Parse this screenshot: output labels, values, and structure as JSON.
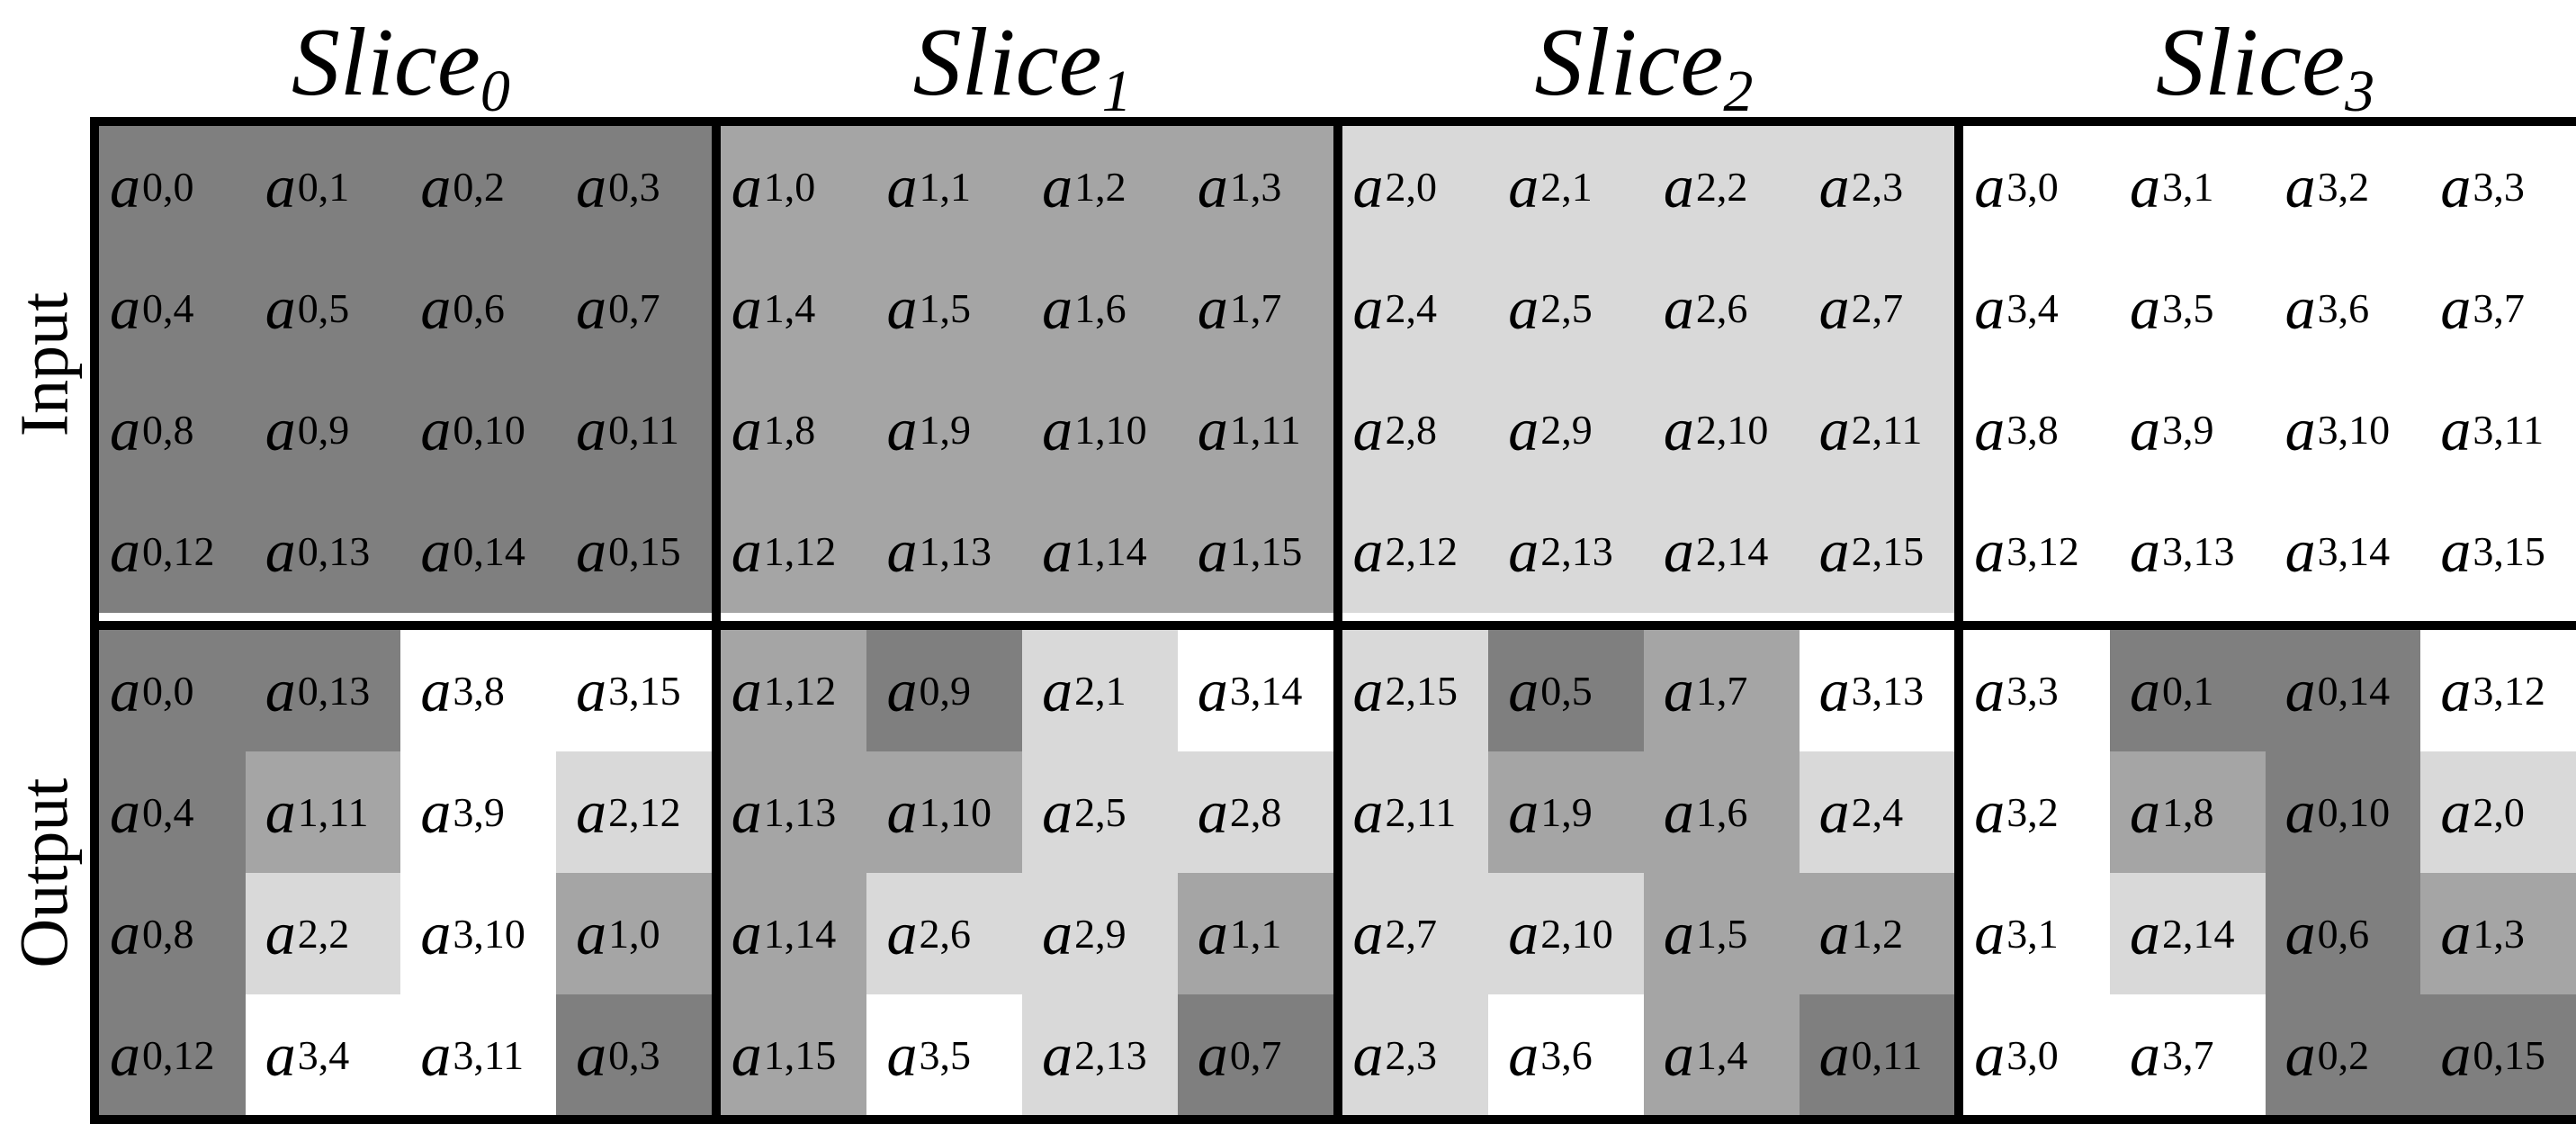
{
  "colors": {
    "0": "#7f7f7f",
    "1": "#a5a5a5",
    "2": "#d9d9d9",
    "3": "#ffffff"
  },
  "slices": [
    {
      "base": "Slice",
      "sub": "0"
    },
    {
      "base": "Slice",
      "sub": "1"
    },
    {
      "base": "Slice",
      "sub": "2"
    },
    {
      "base": "Slice",
      "sub": "3"
    }
  ],
  "row_labels": {
    "input": "Input",
    "output": "Output"
  },
  "symbol": "a",
  "input": [
    [
      [
        0,
        0
      ],
      [
        0,
        1
      ],
      [
        0,
        2
      ],
      [
        0,
        3
      ],
      [
        1,
        0
      ],
      [
        1,
        1
      ],
      [
        1,
        2
      ],
      [
        1,
        3
      ],
      [
        2,
        0
      ],
      [
        2,
        1
      ],
      [
        2,
        2
      ],
      [
        2,
        3
      ],
      [
        3,
        0
      ],
      [
        3,
        1
      ],
      [
        3,
        2
      ],
      [
        3,
        3
      ]
    ],
    [
      [
        0,
        4
      ],
      [
        0,
        5
      ],
      [
        0,
        6
      ],
      [
        0,
        7
      ],
      [
        1,
        4
      ],
      [
        1,
        5
      ],
      [
        1,
        6
      ],
      [
        1,
        7
      ],
      [
        2,
        4
      ],
      [
        2,
        5
      ],
      [
        2,
        6
      ],
      [
        2,
        7
      ],
      [
        3,
        4
      ],
      [
        3,
        5
      ],
      [
        3,
        6
      ],
      [
        3,
        7
      ]
    ],
    [
      [
        0,
        8
      ],
      [
        0,
        9
      ],
      [
        0,
        10
      ],
      [
        0,
        11
      ],
      [
        1,
        8
      ],
      [
        1,
        9
      ],
      [
        1,
        10
      ],
      [
        1,
        11
      ],
      [
        2,
        8
      ],
      [
        2,
        9
      ],
      [
        2,
        10
      ],
      [
        2,
        11
      ],
      [
        3,
        8
      ],
      [
        3,
        9
      ],
      [
        3,
        10
      ],
      [
        3,
        11
      ]
    ],
    [
      [
        0,
        12
      ],
      [
        0,
        13
      ],
      [
        0,
        14
      ],
      [
        0,
        15
      ],
      [
        1,
        12
      ],
      [
        1,
        13
      ],
      [
        1,
        14
      ],
      [
        1,
        15
      ],
      [
        2,
        12
      ],
      [
        2,
        13
      ],
      [
        2,
        14
      ],
      [
        2,
        15
      ],
      [
        3,
        12
      ],
      [
        3,
        13
      ],
      [
        3,
        14
      ],
      [
        3,
        15
      ]
    ]
  ],
  "output": [
    [
      [
        0,
        0
      ],
      [
        0,
        13
      ],
      [
        3,
        8
      ],
      [
        3,
        15
      ],
      [
        1,
        12
      ],
      [
        0,
        9
      ],
      [
        2,
        1
      ],
      [
        3,
        14
      ],
      [
        2,
        15
      ],
      [
        0,
        5
      ],
      [
        1,
        7
      ],
      [
        3,
        13
      ],
      [
        3,
        3
      ],
      [
        0,
        1
      ],
      [
        0,
        14
      ],
      [
        3,
        12
      ]
    ],
    [
      [
        0,
        4
      ],
      [
        1,
        11
      ],
      [
        3,
        9
      ],
      [
        2,
        12
      ],
      [
        1,
        13
      ],
      [
        1,
        10
      ],
      [
        2,
        5
      ],
      [
        2,
        8
      ],
      [
        2,
        11
      ],
      [
        1,
        9
      ],
      [
        1,
        6
      ],
      [
        2,
        4
      ],
      [
        3,
        2
      ],
      [
        1,
        8
      ],
      [
        0,
        10
      ],
      [
        2,
        0
      ]
    ],
    [
      [
        0,
        8
      ],
      [
        2,
        2
      ],
      [
        3,
        10
      ],
      [
        1,
        0
      ],
      [
        1,
        14
      ],
      [
        2,
        6
      ],
      [
        2,
        9
      ],
      [
        1,
        1
      ],
      [
        2,
        7
      ],
      [
        2,
        10
      ],
      [
        1,
        5
      ],
      [
        1,
        2
      ],
      [
        3,
        1
      ],
      [
        2,
        14
      ],
      [
        0,
        6
      ],
      [
        1,
        3
      ]
    ],
    [
      [
        0,
        12
      ],
      [
        3,
        4
      ],
      [
        3,
        11
      ],
      [
        0,
        3
      ],
      [
        1,
        15
      ],
      [
        3,
        5
      ],
      [
        2,
        13
      ],
      [
        0,
        7
      ],
      [
        2,
        3
      ],
      [
        3,
        6
      ],
      [
        1,
        4
      ],
      [
        0,
        11
      ],
      [
        3,
        0
      ],
      [
        3,
        7
      ],
      [
        0,
        2
      ],
      [
        0,
        15
      ]
    ]
  ]
}
